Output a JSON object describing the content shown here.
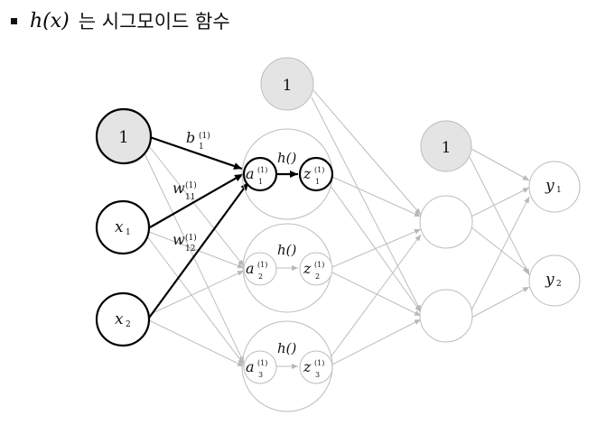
{
  "header": {
    "math": "h(x)",
    "text": "는 시그모이드 함수"
  },
  "diagram": {
    "input_bias": "1",
    "x1": "x",
    "x1_sub": "1",
    "x2": "x",
    "x2_sub": "2",
    "b_label": "b",
    "b_sup": "(1)",
    "b_sub": "1",
    "w11": "w",
    "w11_sup": "(1)",
    "w11_sub": "11",
    "w12": "w",
    "w12_sup": "(1)",
    "w12_sub": "12",
    "h_label": "h()",
    "a": "a",
    "z": "z",
    "sup": "(1)",
    "sub1": "1",
    "sub2": "2",
    "sub3": "3",
    "hidden_bias": "1",
    "second_bias": "1",
    "y": "y",
    "y1_sub": "1",
    "y2_sub": "2"
  }
}
